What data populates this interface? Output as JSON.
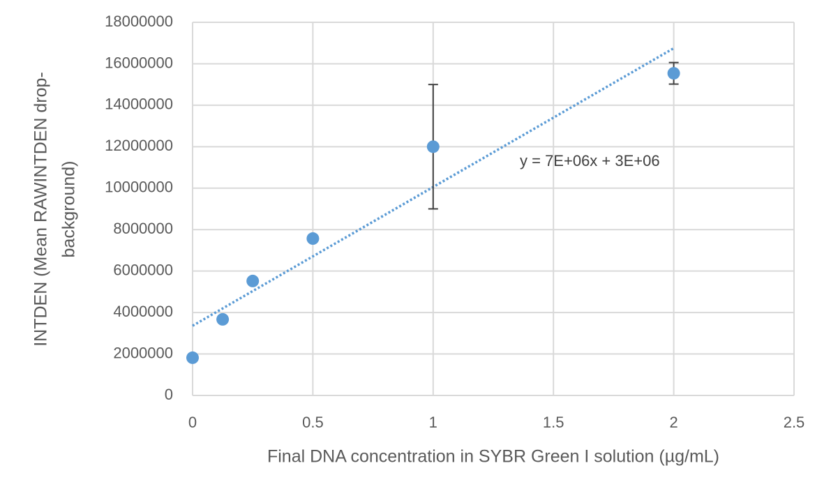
{
  "chart_data": {
    "type": "scatter",
    "xlabel": "Final DNA concentration in SYBR Green I solution (µg/mL)",
    "ylabel": [
      "INTDEN (Mean RAWINTDEN drop-",
      "background)"
    ],
    "x": [
      0,
      0.125,
      0.25,
      0.5,
      1,
      2
    ],
    "series": [
      {
        "color": "#5b9bd5",
        "values": [
          1820000,
          3670000,
          5520000,
          7570000,
          12000000,
          15540000
        ],
        "errors": [
          null,
          null,
          null,
          null,
          3000000,
          520000
        ],
        "error_color": "#404040"
      }
    ],
    "trendline": {
      "x": [
        0,
        2
      ],
      "y": [
        3360000,
        16750000
      ],
      "color": "#5b9bd5",
      "label": "y = 7E+06x + 3E+06"
    },
    "xlim": [
      0,
      2.5
    ],
    "xticks": [
      0,
      0.5,
      1,
      1.5,
      2,
      2.5
    ],
    "ylim": [
      0,
      18000000
    ],
    "yticks": [
      0,
      2000000,
      4000000,
      6000000,
      8000000,
      10000000,
      12000000,
      14000000,
      16000000,
      18000000
    ],
    "grid": true,
    "grid_color": "#d9d9d9"
  }
}
